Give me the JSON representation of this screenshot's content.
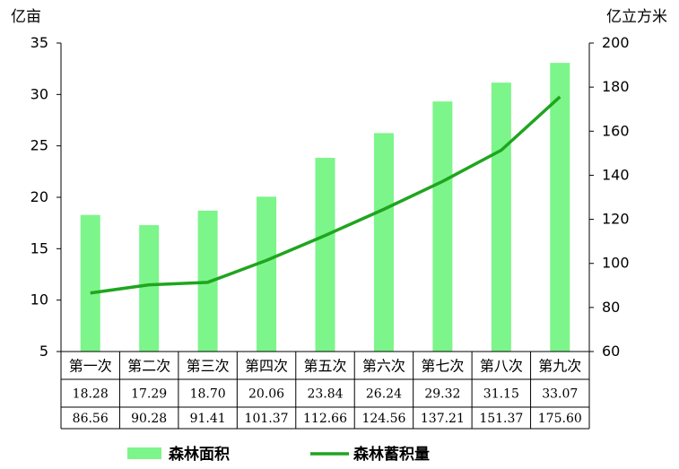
{
  "chart_data": {
    "type": "bar",
    "categories": [
      "第一次",
      "第二次",
      "第三次",
      "第四次",
      "第五次",
      "第六次",
      "第七次",
      "第八次",
      "第九次"
    ],
    "series": [
      {
        "name": "森林面积",
        "type": "bar",
        "axis": "left",
        "color": "#7cf58a",
        "values": [
          18.28,
          17.29,
          18.7,
          20.06,
          23.84,
          26.24,
          29.32,
          31.15,
          33.07
        ]
      },
      {
        "name": "森林蓄积量",
        "type": "line",
        "axis": "right",
        "color": "#1fa51f",
        "values": [
          86.56,
          90.28,
          91.41,
          101.37,
          112.66,
          124.56,
          137.21,
          151.37,
          175.6
        ]
      }
    ],
    "table_rows": [
      [
        "18.28",
        "17.29",
        "18.70",
        "20.06",
        "23.84",
        "26.24",
        "29.32",
        "31.15",
        "33.07"
      ],
      [
        "86.56",
        "90.28",
        "91.41",
        "101.37",
        "112.66",
        "124.56",
        "137.21",
        "151.37",
        "175.60"
      ]
    ],
    "ylabel_left": "亿亩",
    "ylabel_right": "亿立方米",
    "ylim_left": [
      5,
      35
    ],
    "yticks_left": [
      5,
      10,
      15,
      20,
      25,
      30,
      35
    ],
    "ylim_right": [
      60,
      200
    ],
    "yticks_right": [
      60,
      80,
      100,
      120,
      140,
      160,
      180,
      200
    ],
    "grid": false,
    "legend_position": "bottom"
  }
}
